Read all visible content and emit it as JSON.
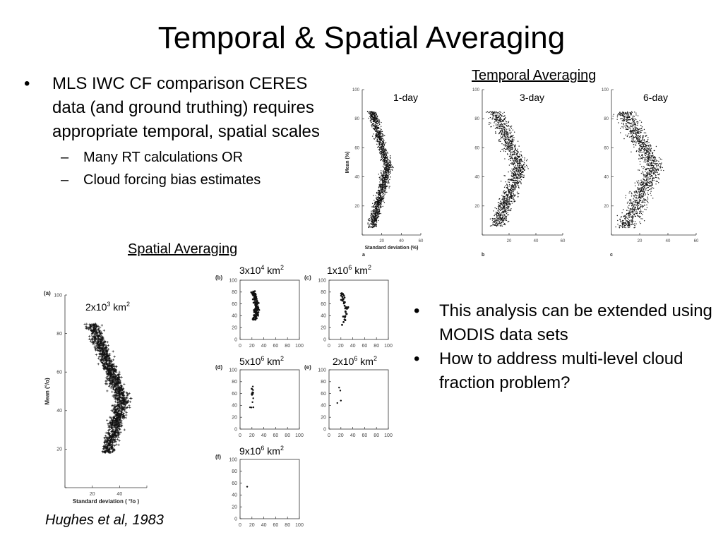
{
  "slide": {
    "title": "Temporal & Spatial Averaging",
    "bullets_left": [
      {
        "marker": "•",
        "text": "MLS IWC CF comparison CERES data (and ground truthing) requires appropriate temporal, spatial scales"
      },
      {
        "marker": "–",
        "text": "Many RT calculations OR"
      },
      {
        "marker": "–",
        "text": "Cloud forcing bias estimates"
      }
    ],
    "bullets_right": [
      {
        "marker": "•",
        "text": "This analysis can be extended using MODIS data sets"
      },
      {
        "marker": "•",
        "text": "How to address multi-level cloud fraction problem?"
      }
    ],
    "temporal_heading": "Temporal Averaging",
    "spatial_heading": "Spatial Averaging",
    "citation": "Hughes et al, 1983",
    "temporal_labels": [
      "1-day",
      "3-day",
      "6-day"
    ],
    "area_labels": [
      {
        "base": "2x10",
        "exp": "3",
        "unit": " km",
        "unit_exp": "2"
      },
      {
        "base": "3x10",
        "exp": "4",
        "unit": " km",
        "unit_exp": "2"
      },
      {
        "base": "1x10",
        "exp": "6",
        "unit": " km",
        "unit_exp": "2"
      },
      {
        "base": "5x10",
        "exp": "6",
        "unit": " km",
        "unit_exp": "2"
      },
      {
        "base": "2x10",
        "exp": "6",
        "unit": " km",
        "unit_exp": "2"
      },
      {
        "base": "9x10",
        "exp": "6",
        "unit": " km",
        "unit_exp": "2"
      }
    ]
  },
  "chart_data": [
    {
      "id": "temporal-a",
      "type": "scatter",
      "panel_letter": "a",
      "label": "1-day",
      "xlabel": "Standard deviation (%)",
      "ylabel": "Mean (%)",
      "xlim": [
        0,
        60
      ],
      "ylim": [
        0,
        100
      ],
      "xticks": [
        0,
        20,
        40,
        60
      ],
      "yticks": [
        0,
        20,
        40,
        60,
        80,
        100
      ],
      "x_tick_labels": [
        "",
        "20",
        "40",
        "60"
      ],
      "y_tick_labels": [
        "",
        "20",
        "40",
        "60",
        "80",
        "100"
      ],
      "shape": {
        "top": 85,
        "bottom": 5,
        "peak_y": 47,
        "sd_top": 10,
        "sd_peak": 26,
        "sd_bottom": 10,
        "width": 3.2,
        "n": 1500
      }
    },
    {
      "id": "temporal-b",
      "type": "scatter",
      "panel_letter": "b",
      "label": "3-day",
      "xlim": [
        0,
        60
      ],
      "ylim": [
        0,
        100
      ],
      "xticks": [
        0,
        20,
        40,
        60
      ],
      "yticks": [
        0,
        20,
        40,
        60,
        80,
        100
      ],
      "x_tick_labels": [
        "",
        "20",
        "40",
        "60"
      ],
      "y_tick_labels": [
        "",
        "20",
        "40",
        "60",
        "80",
        "100"
      ],
      "shape": {
        "top": 85,
        "bottom": 6,
        "peak_y": 47,
        "sd_top": 10,
        "sd_peak": 28,
        "sd_bottom": 11,
        "width": 4.2,
        "n": 1300
      }
    },
    {
      "id": "temporal-c",
      "type": "scatter",
      "panel_letter": "c",
      "label": "6-day",
      "xlim": [
        0,
        60
      ],
      "ylim": [
        0,
        100
      ],
      "xticks": [
        0,
        20,
        40,
        60
      ],
      "yticks": [
        0,
        20,
        40,
        60,
        80,
        100
      ],
      "x_tick_labels": [
        "",
        "20",
        "40",
        "60"
      ],
      "y_tick_labels": [
        "",
        "20",
        "40",
        "60",
        "80",
        "100"
      ],
      "shape": {
        "top": 85,
        "bottom": 5,
        "peak_y": 47,
        "sd_top": 9,
        "sd_peak": 30,
        "sd_bottom": 10,
        "width": 5.0,
        "n": 1300
      }
    },
    {
      "id": "spatial-a",
      "type": "scatter",
      "panel_letter": "(a)",
      "label": "2x10^3 km^2",
      "xlabel": "Standard deviation ( °/o )",
      "ylabel": "Mean (°/o)",
      "xlim": [
        0,
        60
      ],
      "ylim": [
        0,
        100
      ],
      "xticks": [
        0,
        20,
        40,
        60
      ],
      "yticks": [
        0,
        20,
        40,
        60,
        80,
        100
      ],
      "x_tick_labels": [
        "",
        "20",
        "40",
        ""
      ],
      "y_tick_labels": [
        "",
        "20",
        "40",
        "60",
        "80",
        "100"
      ],
      "shape": {
        "top": 85,
        "bottom": 18,
        "peak_y": 45,
        "sd_top": 20,
        "sd_peak": 42,
        "sd_bottom": 31,
        "width": 3.6,
        "n": 1500
      }
    },
    {
      "id": "spatial-b",
      "type": "scatter",
      "panel_letter": "(b)",
      "label": "3x10^4 km^2",
      "xlim": [
        0,
        100
      ],
      "ylim": [
        0,
        100
      ],
      "xticks": [
        0,
        20,
        40,
        60,
        80,
        100
      ],
      "yticks": [
        0,
        20,
        40,
        60,
        80,
        100
      ],
      "x_tick_labels": [
        "0",
        "20",
        "40",
        "60",
        "80",
        "100"
      ],
      "y_tick_labels": [
        "0",
        "20",
        "40",
        "60",
        "80",
        "100"
      ],
      "shape": {
        "top": 83,
        "bottom": 33,
        "peak_y": 55,
        "sd_top": 22,
        "sd_peak": 29,
        "sd_bottom": 24,
        "width": 2.6,
        "n": 150
      }
    },
    {
      "id": "spatial-c",
      "type": "scatter",
      "panel_letter": "(c)",
      "label": "1x10^6 km^2",
      "xlim": [
        0,
        100
      ],
      "ylim": [
        0,
        100
      ],
      "xticks": [
        0,
        20,
        40,
        60,
        80,
        100
      ],
      "yticks": [
        0,
        20,
        40,
        60,
        80,
        100
      ],
      "x_tick_labels": [
        "0",
        "20",
        "40",
        "60",
        "80",
        "100"
      ],
      "y_tick_labels": [
        "0",
        "20",
        "40",
        "60",
        "80",
        "100"
      ],
      "shape": {
        "top": 78,
        "bottom": 22,
        "peak_y": 52,
        "sd_top": 21,
        "sd_peak": 30,
        "sd_bottom": 24,
        "width": 2.2,
        "n": 35
      }
    },
    {
      "id": "spatial-d",
      "type": "scatter",
      "panel_letter": "(d)",
      "label": "5x10^6 km^2",
      "xlim": [
        0,
        100
      ],
      "ylim": [
        0,
        100
      ],
      "xticks": [
        0,
        20,
        40,
        60,
        80,
        100
      ],
      "yticks": [
        0,
        20,
        40,
        60,
        80,
        100
      ],
      "x_tick_labels": [
        "0",
        "20",
        "40",
        "60",
        "80",
        "100"
      ],
      "y_tick_labels": [
        "0",
        "20",
        "40",
        "60",
        "80",
        "100"
      ],
      "shape": {
        "top": 72,
        "bottom": 35,
        "peak_y": 55,
        "sd_top": 19,
        "sd_peak": 22,
        "sd_bottom": 19,
        "width": 1.6,
        "n": 18
      }
    },
    {
      "id": "spatial-e",
      "type": "scatter",
      "panel_letter": "(e)",
      "label": "2x10^6 km^2",
      "xlim": [
        0,
        100
      ],
      "ylim": [
        0,
        100
      ],
      "xticks": [
        0,
        20,
        40,
        60,
        80,
        100
      ],
      "yticks": [
        0,
        20,
        40,
        60,
        80,
        100
      ],
      "x_tick_labels": [
        "0",
        "20",
        "40",
        "60",
        "80",
        "100"
      ],
      "y_tick_labels": [
        "0",
        "20",
        "40",
        "60",
        "80",
        "100"
      ],
      "points": [
        [
          17,
          70
        ],
        [
          19,
          65
        ],
        [
          14,
          44
        ],
        [
          20,
          48
        ]
      ]
    },
    {
      "id": "spatial-f",
      "type": "scatter",
      "panel_letter": "(f)",
      "label": "9x10^6 km^2",
      "xlim": [
        0,
        100
      ],
      "ylim": [
        0,
        100
      ],
      "xticks": [
        0,
        20,
        40,
        60,
        80,
        100
      ],
      "yticks": [
        0,
        20,
        40,
        60,
        80,
        100
      ],
      "x_tick_labels": [
        "0",
        "20",
        "40",
        "60",
        "80",
        "100"
      ],
      "y_tick_labels": [
        "0",
        "20",
        "40",
        "60",
        "80",
        "100"
      ],
      "points": [
        [
          12,
          54
        ]
      ]
    }
  ]
}
